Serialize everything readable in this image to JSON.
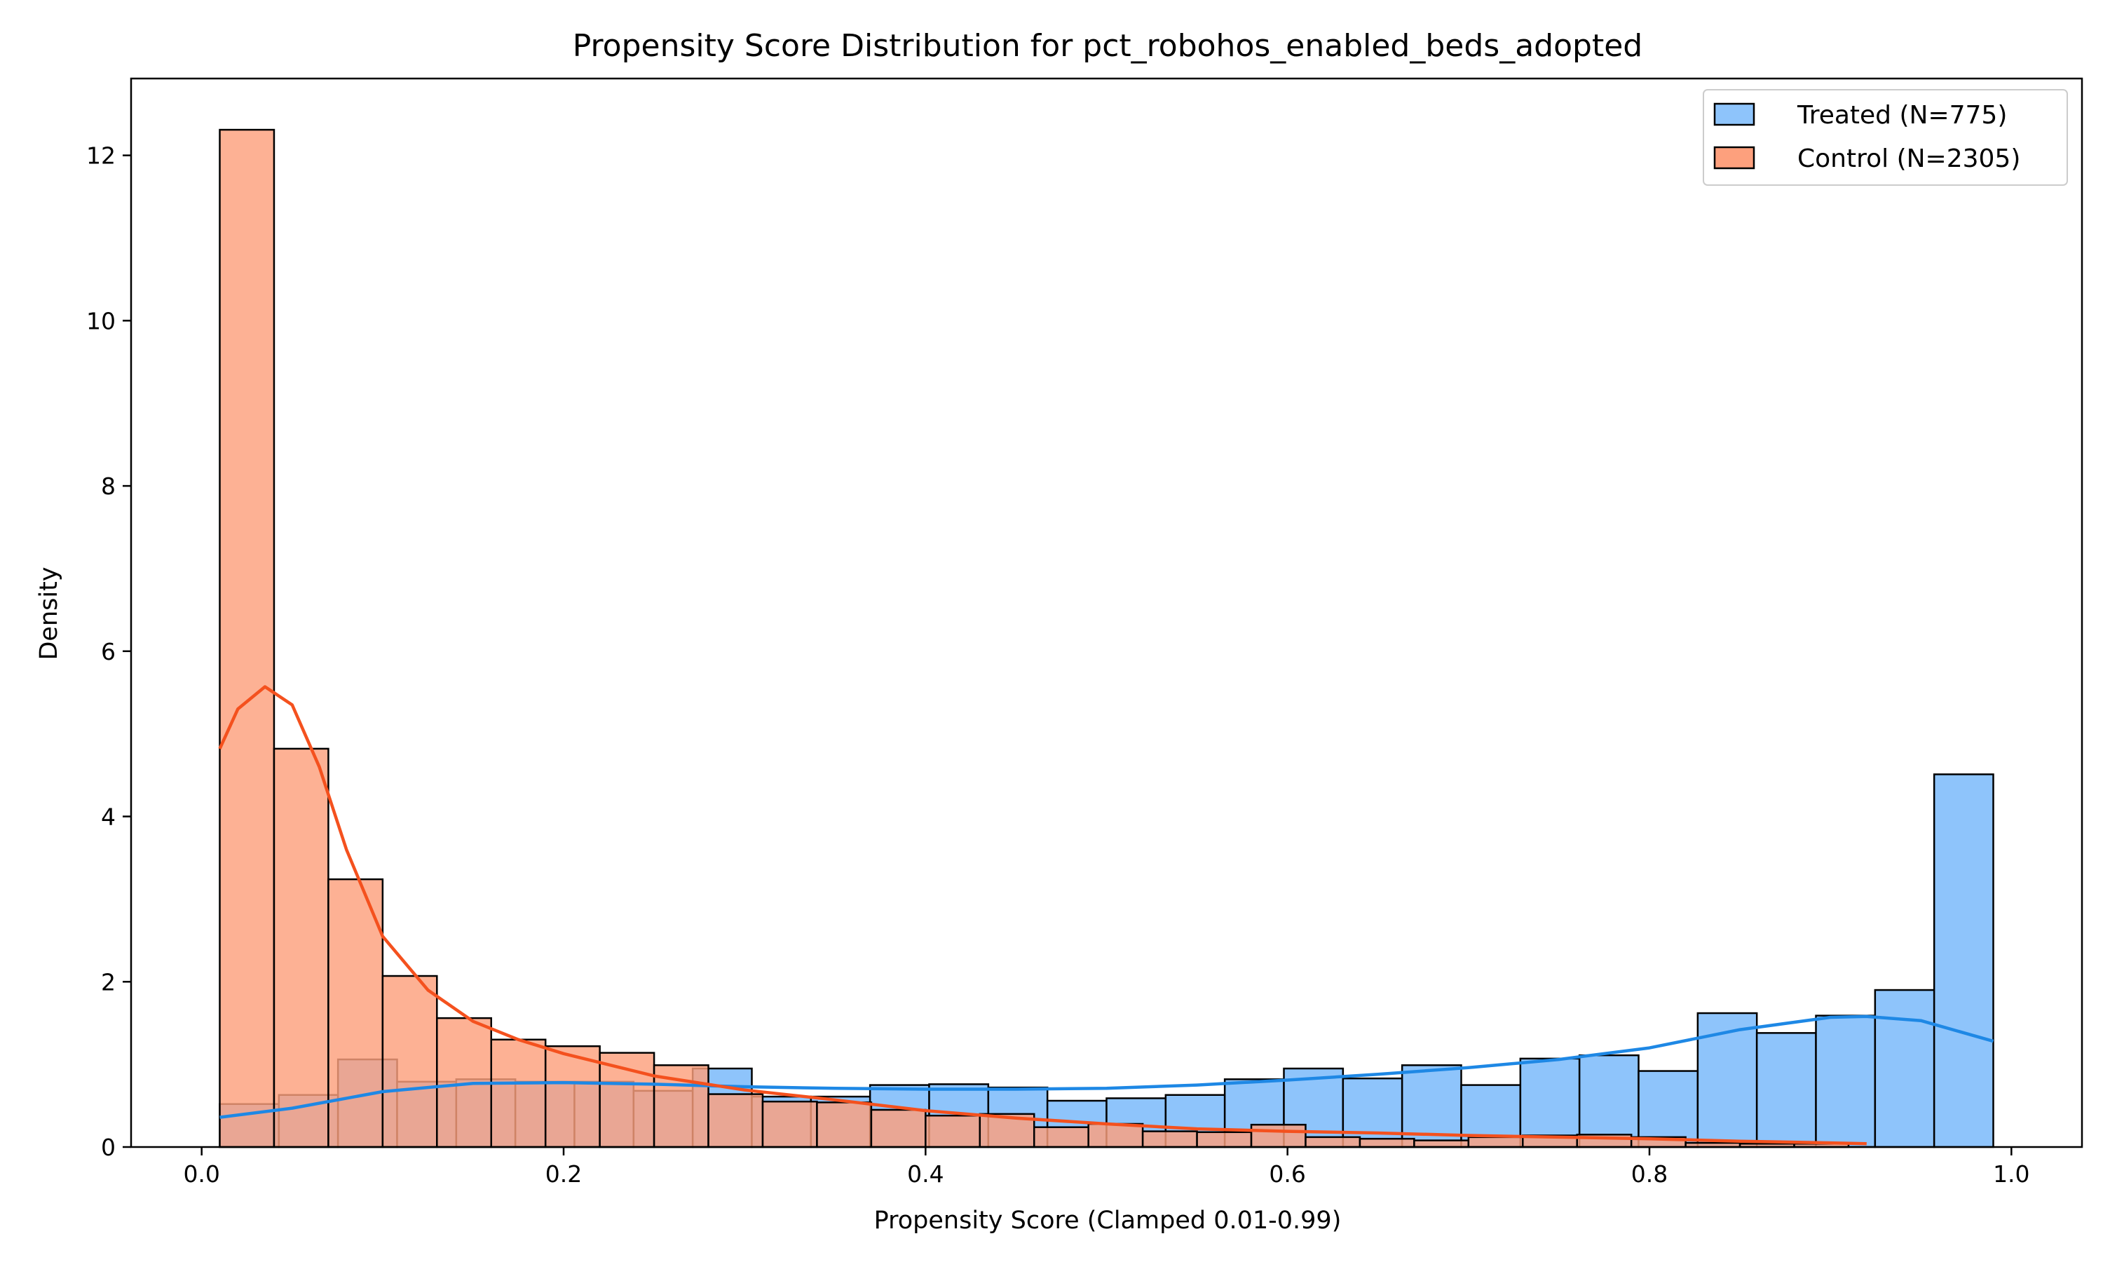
{
  "chart_data": {
    "type": "bar",
    "title": "Propensity Score Distribution for pct_robohos_enabled_beds_adopted",
    "xlabel": "Propensity Score (Clamped 0.01-0.99)",
    "ylabel": "Density",
    "xlim": [
      -0.039,
      1.039
    ],
    "ylim": [
      0,
      12.93
    ],
    "x_ticks": [
      0.0,
      0.2,
      0.4,
      0.6,
      0.8,
      1.0
    ],
    "x_tick_labels": [
      "0.0",
      "0.2",
      "0.4",
      "0.6",
      "0.8",
      "1.0"
    ],
    "y_ticks": [
      0,
      2,
      4,
      6,
      8,
      10,
      12
    ],
    "y_tick_labels": [
      "0",
      "2",
      "4",
      "6",
      "8",
      "10",
      "12"
    ],
    "grid": false,
    "legend_position": "top-right",
    "series": [
      {
        "name": "Treated (N=775)",
        "color": "#8ec4fb",
        "kde_color": "#1e88e5",
        "bin_width": 0.03267,
        "bins_start": [
          0.01,
          0.04267,
          0.07533,
          0.108,
          0.14067,
          0.17333,
          0.206,
          0.23867,
          0.27133,
          0.304,
          0.33667,
          0.36933,
          0.402,
          0.43467,
          0.46733,
          0.5,
          0.53267,
          0.56533,
          0.598,
          0.63067,
          0.66333,
          0.696,
          0.72867,
          0.76133,
          0.794,
          0.82667,
          0.85933,
          0.892,
          0.92467,
          0.95733
        ],
        "values": [
          0.52,
          0.63,
          1.06,
          0.79,
          0.82,
          0.79,
          0.79,
          0.68,
          0.95,
          0.61,
          0.61,
          0.75,
          0.76,
          0.72,
          0.56,
          0.59,
          0.63,
          0.82,
          0.95,
          0.83,
          0.99,
          0.75,
          1.07,
          1.11,
          0.92,
          1.62,
          1.38,
          1.59,
          1.9,
          4.51
        ],
        "kde_x": [
          0.01,
          0.05,
          0.1,
          0.15,
          0.2,
          0.25,
          0.3,
          0.35,
          0.4,
          0.45,
          0.5,
          0.55,
          0.6,
          0.65,
          0.7,
          0.75,
          0.8,
          0.85,
          0.9,
          0.92,
          0.95,
          0.99
        ],
        "kde_y": [
          0.36,
          0.47,
          0.67,
          0.77,
          0.78,
          0.76,
          0.73,
          0.71,
          0.7,
          0.7,
          0.71,
          0.75,
          0.81,
          0.88,
          0.96,
          1.06,
          1.2,
          1.42,
          1.57,
          1.58,
          1.53,
          1.28
        ]
      },
      {
        "name": "Control (N=2305)",
        "color": "#fda07d",
        "kde_color": "#f4511e",
        "bin_width": 0.03,
        "bins_start": [
          0.01,
          0.04,
          0.07,
          0.1,
          0.13,
          0.16,
          0.19,
          0.22,
          0.25,
          0.28,
          0.31,
          0.34,
          0.37,
          0.4,
          0.43,
          0.46,
          0.49,
          0.52,
          0.55,
          0.58,
          0.61,
          0.64,
          0.67,
          0.7,
          0.73,
          0.76,
          0.79,
          0.82,
          0.85,
          0.88
        ],
        "values": [
          12.31,
          4.82,
          3.24,
          2.07,
          1.56,
          1.3,
          1.22,
          1.14,
          0.99,
          0.64,
          0.55,
          0.54,
          0.45,
          0.38,
          0.4,
          0.24,
          0.28,
          0.19,
          0.18,
          0.27,
          0.12,
          0.1,
          0.08,
          0.12,
          0.14,
          0.15,
          0.12,
          0.05,
          0.04,
          0.04
        ],
        "kde_x": [
          0.01,
          0.02,
          0.035,
          0.05,
          0.065,
          0.08,
          0.1,
          0.125,
          0.15,
          0.175,
          0.2,
          0.25,
          0.3,
          0.35,
          0.4,
          0.45,
          0.5,
          0.55,
          0.6,
          0.65,
          0.7,
          0.75,
          0.8,
          0.85,
          0.9,
          0.92
        ],
        "kde_y": [
          4.82,
          5.3,
          5.57,
          5.35,
          4.6,
          3.6,
          2.55,
          1.9,
          1.52,
          1.3,
          1.13,
          0.86,
          0.69,
          0.57,
          0.44,
          0.35,
          0.28,
          0.22,
          0.19,
          0.17,
          0.14,
          0.12,
          0.1,
          0.07,
          0.05,
          0.04
        ]
      }
    ]
  }
}
